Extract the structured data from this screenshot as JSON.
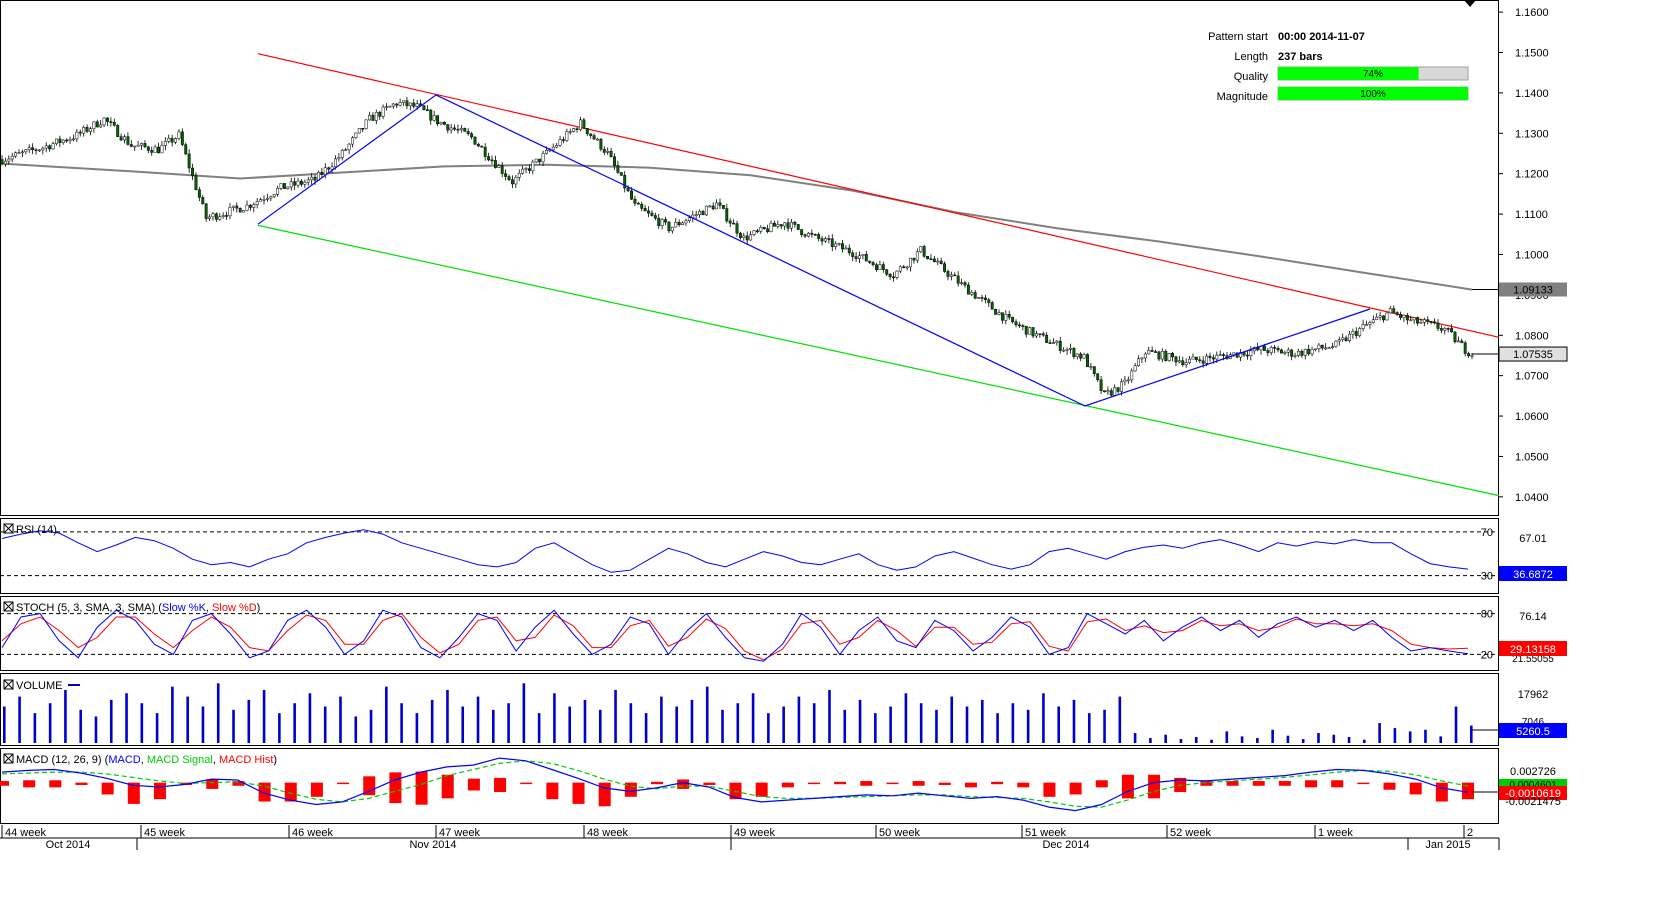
{
  "pattern_info": {
    "pattern_start_label": "Pattern start",
    "pattern_start_value": "00:00 2014-11-07",
    "length_label": "Length",
    "length_value": "237 bars",
    "quality_label": "Quality",
    "quality_value": "74%",
    "quality_fraction": 0.74,
    "magnitude_label": "Magnitude",
    "magnitude_value": "100%",
    "magnitude_fraction": 1.0
  },
  "colors": {
    "channel_upper": "#ff0000",
    "channel_lower": "#00e000",
    "zigzag": "#0000ff",
    "moving_average": "#808080",
    "candle_up": "#ffffff",
    "candle_down": "#006400",
    "volume": "#0000cc",
    "stoch_k": "#0000ff",
    "stoch_d": "#ff0000",
    "macd_signal": "#00cc00",
    "macd_hist": "#ff0000",
    "quality_bar": "#00ff00"
  },
  "chart_data": [
    {
      "type": "candlestick",
      "panel": "price",
      "ylim": [
        1.036,
        1.1625
      ],
      "y_ticks": [
        "1.1600",
        "1.1500",
        "1.1400",
        "1.1300",
        "1.1200",
        "1.1100",
        "1.1000",
        "1.0900",
        "1.0800",
        "1.0700",
        "1.0600",
        "1.0500",
        "1.0400"
      ],
      "ma_label": "1.09133",
      "ma_value": 1.09133,
      "last_price_label": "1.07535",
      "last_price": 1.07535,
      "close_path": [
        [
          0,
          1.1235
        ],
        [
          12,
          1.1265
        ],
        [
          22,
          1.1295
        ],
        [
          30,
          1.1335
        ],
        [
          38,
          1.127
        ],
        [
          46,
          1.126
        ],
        [
          52,
          1.1295
        ],
        [
          60,
          1.109
        ],
        [
          72,
          1.112
        ],
        [
          82,
          1.1165
        ],
        [
          92,
          1.1185
        ],
        [
          100,
          1.125
        ],
        [
          108,
          1.1335
        ],
        [
          116,
          1.1375
        ],
        [
          122,
          1.1365
        ],
        [
          128,
          1.133
        ],
        [
          138,
          1.129
        ],
        [
          150,
          1.118
        ],
        [
          160,
          1.125
        ],
        [
          170,
          1.1325
        ],
        [
          178,
          1.125
        ],
        [
          186,
          1.112
        ],
        [
          196,
          1.1065
        ],
        [
          210,
          1.1125
        ],
        [
          218,
          1.104
        ],
        [
          230,
          1.108
        ],
        [
          238,
          1.1045
        ],
        [
          250,
          1.1005
        ],
        [
          262,
          1.095
        ],
        [
          270,
          1.101
        ],
        [
          282,
          1.0925
        ],
        [
          296,
          1.0835
        ],
        [
          304,
          1.08
        ],
        [
          318,
          1.0745
        ],
        [
          324,
          1.065
        ],
        [
          330,
          1.068
        ],
        [
          336,
          1.076
        ],
        [
          348,
          1.0735
        ],
        [
          360,
          1.075
        ],
        [
          370,
          1.0765
        ],
        [
          380,
          1.0755
        ],
        [
          392,
          1.0775
        ],
        [
          400,
          1.082
        ],
        [
          408,
          1.0858
        ],
        [
          414,
          1.0835
        ],
        [
          418,
          1.083
        ],
        [
          424,
          1.0815
        ],
        [
          430,
          1.0765
        ],
        [
          432,
          1.0755
        ]
      ],
      "channel_upper": [
        [
          1.1497,
          0
        ],
        [
          1.0795,
          432
        ]
      ],
      "channel_lower": [
        [
          1.1072,
          0
        ],
        [
          1.0403,
          432
        ]
      ],
      "zigzag": [
        [
          1.1075,
          "11-07"
        ],
        [
          1.1395,
          "11-17"
        ],
        [
          1.0625,
          "12-08"
        ],
        [
          1.0865,
          "12-29"
        ]
      ],
      "moving_average": [
        [
          0,
          1.1225
        ],
        [
          40,
          1.1205
        ],
        [
          70,
          1.1188
        ],
        [
          100,
          1.1203
        ],
        [
          130,
          1.1218
        ],
        [
          160,
          1.1222
        ],
        [
          190,
          1.1215
        ],
        [
          220,
          1.1196
        ],
        [
          250,
          1.1158
        ],
        [
          280,
          1.1105
        ],
        [
          310,
          1.1065
        ],
        [
          340,
          1.1032
        ],
        [
          370,
          1.0995
        ],
        [
          400,
          1.0955
        ],
        [
          432,
          1.0913
        ]
      ]
    },
    {
      "type": "line",
      "panel": "rsi",
      "title": "RSI (14)",
      "levels": [
        70,
        30
      ],
      "level_labels": [
        "70",
        "30"
      ],
      "axis_label": "67.01",
      "value_label": "36.6872",
      "ylim": [
        15,
        80
      ],
      "values": [
        64,
        68,
        71,
        69,
        60,
        52,
        58,
        65,
        62,
        55,
        45,
        40,
        42,
        38,
        45,
        50,
        60,
        65,
        69,
        72,
        68,
        60,
        55,
        50,
        45,
        40,
        38,
        42,
        55,
        60,
        50,
        40,
        33,
        35,
        45,
        55,
        50,
        42,
        38,
        45,
        52,
        48,
        42,
        40,
        45,
        50,
        40,
        35,
        38,
        48,
        52,
        46,
        40,
        36,
        40,
        52,
        55,
        50,
        45,
        52,
        56,
        58,
        55,
        60,
        63,
        58,
        52,
        60,
        57,
        61,
        59,
        63,
        60,
        60,
        50,
        41,
        38,
        36
      ]
    },
    {
      "type": "line",
      "panel": "stochastic",
      "title": "STOCH (5, 3, SMA, 3, SMA)",
      "series_labels": [
        "Slow %K",
        "Slow %D"
      ],
      "levels": [
        80,
        20
      ],
      "level_labels": [
        "80",
        "20"
      ],
      "axis_label": "76.14",
      "value_label": "29.13158",
      "hidden_label": "21.55055",
      "ylim": [
        0,
        100
      ],
      "k_values": [
        30,
        75,
        80,
        40,
        15,
        60,
        85,
        70,
        35,
        20,
        70,
        80,
        50,
        15,
        25,
        70,
        85,
        60,
        20,
        40,
        85,
        75,
        30,
        15,
        45,
        80,
        70,
        25,
        60,
        85,
        50,
        20,
        35,
        75,
        65,
        20,
        55,
        80,
        45,
        15,
        10,
        35,
        80,
        60,
        20,
        55,
        75,
        40,
        30,
        70,
        55,
        25,
        45,
        75,
        60,
        20,
        30,
        80,
        65,
        50,
        70,
        40,
        60,
        75,
        55,
        70,
        45,
        65,
        75,
        60,
        70,
        55,
        70,
        45,
        25,
        30,
        25,
        21
      ],
      "d_values": [
        40,
        65,
        75,
        55,
        30,
        45,
        75,
        75,
        50,
        30,
        55,
        75,
        60,
        30,
        25,
        55,
        78,
        70,
        35,
        35,
        70,
        80,
        45,
        22,
        35,
        70,
        75,
        40,
        45,
        78,
        62,
        30,
        30,
        62,
        70,
        32,
        45,
        72,
        58,
        25,
        12,
        28,
        65,
        70,
        35,
        45,
        70,
        55,
        32,
        60,
        60,
        35,
        38,
        65,
        68,
        32,
        25,
        68,
        72,
        55,
        62,
        52,
        55,
        70,
        62,
        65,
        55,
        60,
        72,
        65,
        65,
        62,
        65,
        55,
        35,
        30,
        28,
        29
      ]
    },
    {
      "type": "bar",
      "panel": "volume",
      "title": "VOLUME",
      "axis_label": "17962",
      "hidden_label": "7046",
      "value_label": "5260.5",
      "values": [
        11000,
        14000,
        9000,
        12000,
        16000,
        10000,
        8000,
        13000,
        15000,
        12000,
        9000,
        17000,
        14000,
        11000,
        18000,
        10000,
        13000,
        16000,
        9000,
        12000,
        15000,
        11000,
        14000,
        8000,
        10000,
        17000,
        12000,
        9000,
        13000,
        16000,
        11000,
        14000,
        10000,
        12000,
        18000,
        9000,
        15000,
        11000,
        13000,
        10000,
        16000,
        12000,
        9000,
        14000,
        11000,
        13000,
        17000,
        10000,
        12000,
        15000,
        9000,
        11000,
        14000,
        12000,
        16000,
        10000,
        13000,
        9000,
        11000,
        15000,
        12000,
        10000,
        14000,
        11000,
        13000,
        9000,
        12000,
        10000,
        15000,
        11000,
        13000,
        9000,
        10000,
        14000,
        3000,
        1500,
        2500,
        1200,
        1800,
        1000,
        3500,
        2000,
        1500,
        4000,
        2200,
        1200,
        3000,
        2500,
        1800,
        1000,
        6000,
        4500,
        3500,
        4000,
        2000,
        11000,
        5260
      ]
    },
    {
      "type": "line",
      "panel": "macd",
      "title": "MACD (12, 26, 9)",
      "series_labels": [
        "MACD",
        "MACD Signal",
        "MACD Hist"
      ],
      "axis_labels": [
        "0.002726",
        "-0.0021475"
      ],
      "hidden_label": "0.0004601",
      "value_label": "-0.0010619",
      "ylim": [
        -0.0045,
        0.0035
      ],
      "macd_values": [
        0.0012,
        0.0014,
        0.0015,
        0.0011,
        0.0005,
        -0.0003,
        -0.0005,
        -0.0002,
        0.0004,
        0.0003,
        -0.0012,
        -0.002,
        -0.0025,
        -0.0022,
        -0.001,
        0.0003,
        0.0012,
        0.0018,
        0.002,
        0.0028,
        0.0025,
        0.0015,
        0.0005,
        -0.0006,
        -0.001,
        -0.0006,
        0.0,
        -0.0005,
        -0.0017,
        -0.0022,
        -0.002,
        -0.0018,
        -0.0016,
        -0.0014,
        -0.0015,
        -0.0012,
        -0.0015,
        -0.0018,
        -0.0016,
        -0.002,
        -0.0028,
        -0.0032,
        -0.0025,
        -0.001,
        0.0,
        0.0003,
        0.0002,
        0.0004,
        0.0006,
        0.0008,
        0.0012,
        0.0015,
        0.0014,
        0.001,
        0.0004,
        -0.0006,
        -0.0011
      ],
      "signal_values": [
        0.001,
        0.0011,
        0.0012,
        0.0012,
        0.001,
        0.0006,
        0.0002,
        -0.0001,
        0.0,
        0.0001,
        -0.0004,
        -0.0012,
        -0.0019,
        -0.0022,
        -0.0018,
        -0.001,
        -0.0002,
        0.0008,
        0.0015,
        0.0022,
        0.0025,
        0.0022,
        0.0014,
        0.0004,
        -0.0004,
        -0.0007,
        -0.0004,
        -0.0004,
        -0.001,
        -0.0016,
        -0.0018,
        -0.0018,
        -0.0017,
        -0.0016,
        -0.0015,
        -0.0014,
        -0.0014,
        -0.0016,
        -0.0017,
        -0.0018,
        -0.0022,
        -0.0027,
        -0.0028,
        -0.002,
        -0.001,
        -0.0003,
        0.0,
        0.0002,
        0.0004,
        0.0006,
        0.0009,
        0.0012,
        0.0014,
        0.0013,
        0.0009,
        0.0002,
        -0.0004
      ]
    }
  ],
  "x_axis": {
    "week_labels": [
      "44 week",
      "45 week",
      "46 week",
      "47 week",
      "48 week",
      "49 week",
      "50 week",
      "51 week",
      "52 week",
      "1 week",
      "2"
    ],
    "month_labels": [
      "Oct 2014",
      "Nov 2014",
      "Dec 2014",
      "Jan 2015"
    ]
  },
  "panel_titles": {
    "rsi": "RSI (14)",
    "stoch": "STOCH (5, 3, SMA, 3, SMA)",
    "stoch_k": "Slow %K",
    "stoch_d": "Slow %D",
    "volume": "VOLUME",
    "macd": "MACD (12, 26, 9)",
    "macd_line": "MACD",
    "macd_signal": "MACD Signal",
    "macd_hist": "MACD Hist"
  }
}
